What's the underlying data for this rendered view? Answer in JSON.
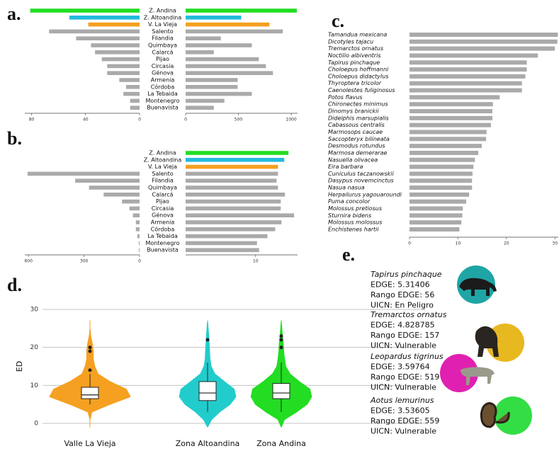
{
  "chart_data": [
    {
      "type": "mirror_bar",
      "label": "a.",
      "categories": [
        "Z. Andina",
        "Z. Altoandina",
        "V. La Vieja",
        "Salento",
        "Filandia",
        "Quimbaya",
        "Calarcá",
        "Pijao",
        "Circasia",
        "Génova",
        "Armenia",
        "Córdoba",
        "La Tebaida",
        "Montenegro",
        "Buenavista"
      ],
      "colors": [
        "#22dd22",
        "#22bbdd",
        "#f5a020",
        "#aaaaaa",
        "#aaaaaa",
        "#aaaaaa",
        "#aaaaaa",
        "#aaaaaa",
        "#aaaaaa",
        "#aaaaaa",
        "#aaaaaa",
        "#aaaaaa",
        "#aaaaaa",
        "#aaaaaa",
        "#aaaaaa"
      ],
      "left": {
        "values": [
          81,
          52,
          38,
          67,
          47,
          36,
          33,
          28,
          24,
          24,
          15,
          10,
          12,
          7,
          7
        ],
        "xlim": [
          0,
          85
        ],
        "xticks": [
          80,
          40,
          0
        ]
      },
      "right": {
        "values": [
          1053,
          527,
          793,
          920,
          333,
          627,
          267,
          693,
          760,
          827,
          493,
          493,
          627,
          367,
          267
        ],
        "xlim": [
          0,
          1060
        ],
        "xticks": [
          0,
          500,
          1000
        ]
      }
    },
    {
      "type": "mirror_bar",
      "label": "b.",
      "categories": [
        "Z. Andina",
        "Z. Altoandina",
        "V. La Vieja",
        "Salento",
        "Filandia",
        "Quimbaya",
        "Calarcá",
        "Pijao",
        "Circasia",
        "Génova",
        "Armenia",
        "Córdoba",
        "La Tebaida",
        "Montenegro",
        "Buenavista"
      ],
      "colors": [
        "#22dd22",
        "#22bbdd",
        "#f5a020",
        "#aaaaaa",
        "#aaaaaa",
        "#aaaaaa",
        "#aaaaaa",
        "#aaaaaa",
        "#aaaaaa",
        "#aaaaaa",
        "#aaaaaa",
        "#aaaaaa",
        "#aaaaaa",
        "#aaaaaa",
        "#aaaaaa"
      ],
      "left": {
        "values": [
          null,
          null,
          null,
          605,
          348,
          273,
          194,
          95,
          55,
          36,
          20,
          20,
          12,
          4,
          4
        ],
        "xlim": [
          0,
          620
        ],
        "xticks": [
          600,
          300,
          0
        ]
      },
      "right": {
        "values": [
          14.7,
          14.1,
          13.2,
          13.2,
          13.0,
          13.2,
          14.2,
          13.6,
          13.6,
          15.5,
          13.7,
          12.8,
          11.7,
          10.2,
          10.5
        ],
        "xlim": [
          0,
          16
        ],
        "xticks": [
          10
        ]
      }
    },
    {
      "type": "bar",
      "label": "c.",
      "categories": [
        "Tamandua mexicana",
        "Dicotyles tajacu",
        "Tremarctos ornatus",
        "Noctilio albiventris",
        "Tapirus pinchaque",
        "Choloepus hoffmanni",
        "Choloepus didactylus",
        "Thyroptera tricolor",
        "Caenolestes fuliginosus",
        "Potos flavus",
        "Chironectes minimus",
        "Dinomys branickii",
        "Didelphis marsupialis",
        "Cabassous centralis",
        "Marmosops caucae",
        "Saccopteryx bilineata",
        "Desmodus rotundus",
        "Marmosa demerarae",
        "Nasuella olivacea",
        "Eira barbara",
        "Cuniculus taczanowskii",
        "Dasypus novemcinctus",
        "Nasua nasua",
        "Herpailurus yagouaroundi",
        "Puma concolor",
        "Molossus pretiosus",
        "Sturnira bidens",
        "Molossus molossus",
        "Enchistenes hartii"
      ],
      "values": [
        30.6,
        30.5,
        30.0,
        26.5,
        24.2,
        24.2,
        23.9,
        23.2,
        23.2,
        18.6,
        17.2,
        17.1,
        17.1,
        16.8,
        15.9,
        15.8,
        14.9,
        14.2,
        13.5,
        13.2,
        13.0,
        12.9,
        12.9,
        12.3,
        11.7,
        11.0,
        10.9,
        10.7,
        10.3
      ],
      "color": "#aaaaaa",
      "xlim": [
        0,
        30.7
      ],
      "xticks": [
        0,
        10,
        20,
        30
      ]
    },
    {
      "type": "violin",
      "label": "d.",
      "ylabel": "ED",
      "ylim": [
        -1.5,
        31.5
      ],
      "yticks": [
        0,
        10,
        20,
        30
      ],
      "grid": true,
      "categories": [
        "Valle La Vieja",
        "Zona Altoandina",
        "Zona Andina"
      ],
      "kde_y": [
        -1,
        1,
        3,
        5,
        7,
        9,
        11,
        13,
        15,
        17,
        19,
        21,
        23,
        25,
        27
      ],
      "series": [
        {
          "color": "#f5a020",
          "q1": 6.5,
          "median": 7.5,
          "q3": 9.5,
          "whisker_low": 5,
          "whisker_high": 13,
          "outliers": [
            14,
            19,
            20
          ],
          "density": [
            0,
            0,
            0.05,
            0.5,
            1.0,
            0.9,
            0.5,
            0.2,
            0.12,
            0.08,
            0.08,
            0.06,
            0.02,
            0,
            0
          ]
        },
        {
          "color": "#22cccc",
          "q1": 6,
          "median": 8,
          "q3": 11,
          "whisker_low": 3,
          "whisker_high": 16,
          "outliers": [
            22
          ],
          "density": [
            0,
            0.1,
            0.3,
            0.56,
            0.7,
            0.66,
            0.42,
            0.18,
            0.09,
            0.06,
            0.05,
            0.04,
            0.03,
            0.015,
            0
          ]
        },
        {
          "color": "#22dd22",
          "q1": 6.5,
          "median": 8,
          "q3": 10.5,
          "whisker_low": 3,
          "whisker_high": 16,
          "outliers": [
            20,
            22,
            23
          ],
          "density": [
            0,
            0.08,
            0.38,
            0.64,
            0.75,
            0.71,
            0.45,
            0.22,
            0.11,
            0.08,
            0.06,
            0.05,
            0.03,
            0.015,
            0
          ]
        }
      ]
    }
  ],
  "species_panel": {
    "label": "e.",
    "species": [
      {
        "name": "Tapirus pinchaque",
        "edge": "EDGE: 5.31406",
        "rank": "Rango EDGE: 56",
        "uicn": "UICN: En Peligro"
      },
      {
        "name": "Tremarctos ornatus",
        "edge": "EDGE: 4.828785",
        "rank": "Rango EDGE: 157",
        "uicn": "UICN: Vulnerable"
      },
      {
        "name": "Leopardus tigrinus",
        "edge": "EDGE: 3.59764",
        "rank": "Rango EDGE: 519",
        "uicn": "UICN: Vulnerable"
      },
      {
        "name": "Aotus lemurinus",
        "edge": "EDGE: 3.53605",
        "rank": "Rango EDGE: 559",
        "uicn": "UICN: Vulnerable"
      }
    ]
  }
}
